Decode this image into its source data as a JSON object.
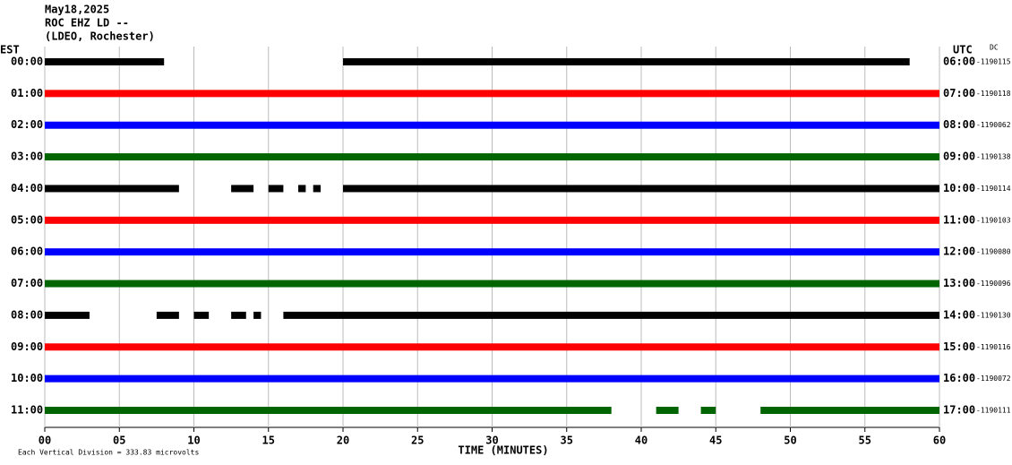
{
  "chart_data": {
    "type": "helicorder",
    "title_lines": [
      "May18,2025",
      "ROC EHZ LD --",
      "(LDEO, Rochester)"
    ],
    "left_axis_label": "EST",
    "right_axis_label": "UTC",
    "dc_label": "DC",
    "x_label": "TIME (MINUTES)",
    "footnote": "Each Vertical Division = 333.83 microvolts",
    "xlim": [
      0,
      60
    ],
    "xticks": [
      {
        "value": 0,
        "label": "00"
      },
      {
        "value": 5,
        "label": "05"
      },
      10,
      15,
      20,
      25,
      30,
      35,
      40,
      45,
      50,
      55,
      60
    ],
    "grid": true,
    "rows": [
      {
        "est": "00:00",
        "utc": "06:00",
        "dc": "-1190115",
        "color": "#000000",
        "segments": [
          [
            0,
            8
          ],
          [
            20,
            58
          ]
        ]
      },
      {
        "est": "01:00",
        "utc": "07:00",
        "dc": "-1190118",
        "color": "#ff0000",
        "segments": [
          [
            0,
            60
          ]
        ]
      },
      {
        "est": "02:00",
        "utc": "08:00",
        "dc": "-1190062",
        "color": "#0000ff",
        "segments": [
          [
            0,
            60
          ]
        ]
      },
      {
        "est": "03:00",
        "utc": "09:00",
        "dc": "-1190138",
        "color": "#006400",
        "segments": [
          [
            0,
            60
          ]
        ]
      },
      {
        "est": "04:00",
        "utc": "10:00",
        "dc": "-1190114",
        "color": "#000000",
        "segments": [
          [
            0,
            9
          ],
          [
            12.5,
            14
          ],
          [
            15,
            16
          ],
          [
            17,
            17.5
          ],
          [
            18,
            18.5
          ],
          [
            20,
            60
          ]
        ]
      },
      {
        "est": "05:00",
        "utc": "11:00",
        "dc": "-1190103",
        "color": "#ff0000",
        "segments": [
          [
            0,
            60
          ]
        ]
      },
      {
        "est": "06:00",
        "utc": "12:00",
        "dc": "-1190080",
        "color": "#0000ff",
        "segments": [
          [
            0,
            60
          ]
        ]
      },
      {
        "est": "07:00",
        "utc": "13:00",
        "dc": "-1190096",
        "color": "#006400",
        "segments": [
          [
            0,
            60
          ]
        ]
      },
      {
        "est": "08:00",
        "utc": "14:00",
        "dc": "-1190130",
        "color": "#000000",
        "segments": [
          [
            0,
            3
          ],
          [
            7.5,
            9
          ],
          [
            10,
            11
          ],
          [
            12.5,
            13.5
          ],
          [
            14,
            14.5
          ],
          [
            16,
            60
          ]
        ]
      },
      {
        "est": "09:00",
        "utc": "15:00",
        "dc": "-1190116",
        "color": "#ff0000",
        "segments": [
          [
            0,
            60
          ]
        ]
      },
      {
        "est": "10:00",
        "utc": "16:00",
        "dc": "-1190072",
        "color": "#0000ff",
        "segments": [
          [
            0,
            60
          ]
        ]
      },
      {
        "est": "11:00",
        "utc": "17:00",
        "dc": "-1190111",
        "color": "#006400",
        "segments": [
          [
            0,
            38
          ],
          [
            41,
            42.5
          ],
          [
            44,
            45
          ],
          [
            48,
            60
          ]
        ]
      }
    ]
  }
}
